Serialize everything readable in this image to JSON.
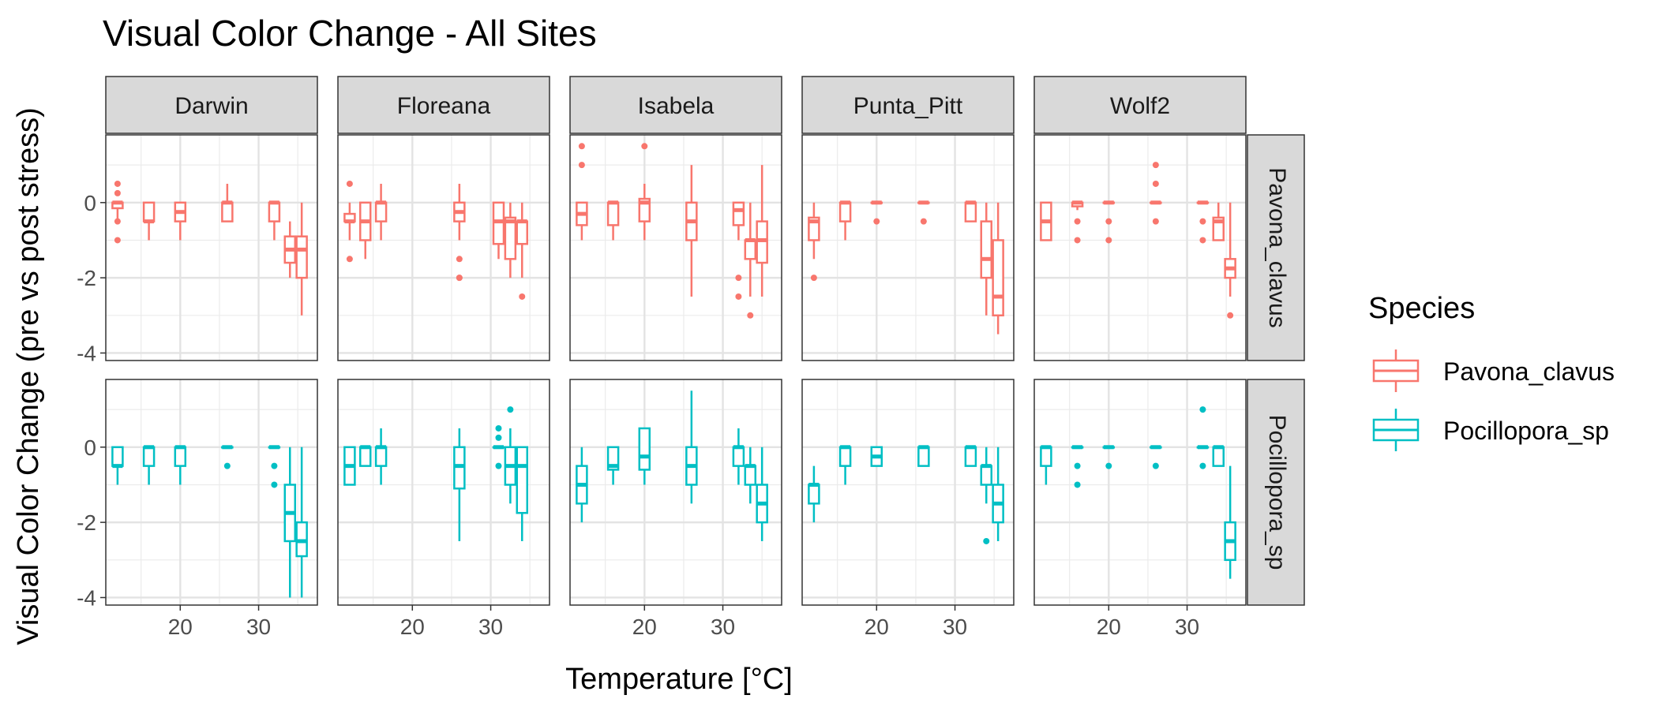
{
  "chart_data": {
    "type": "box",
    "title": "Visual Color Change - All Sites",
    "xlabel": "Temperature [°C]",
    "ylabel": "Visual Color Change (pre vs post stress)",
    "xlim": [
      10.5,
      37.5
    ],
    "ylim": [
      -4.2,
      1.8
    ],
    "x_ticks": [
      20,
      30
    ],
    "y_ticks": [
      0,
      -2,
      -4
    ],
    "grid": true,
    "legend": {
      "title": "Species",
      "position": "right",
      "entries": [
        {
          "label": "Pavona_clavus",
          "color": "#F8766D"
        },
        {
          "label": "Pocillopora_sp",
          "color": "#00BFC4"
        }
      ]
    },
    "sites": [
      "Darwin",
      "Floreana",
      "Isabela",
      "Punta_Pitt",
      "Wolf2"
    ],
    "species": [
      {
        "name": "Pavona_clavus",
        "color": "#F8766D"
      },
      {
        "name": "Pocillopora_sp",
        "color": "#00BFC4"
      }
    ],
    "boxes": [
      [
        [
          {
            "x": 12,
            "q1": -0.15,
            "med": 0,
            "q3": 0,
            "lo": -0.5,
            "hi": 0,
            "out": [
              0.5,
              0.25,
              -0.5,
              -1
            ]
          },
          {
            "x": 16,
            "q1": -0.5,
            "med": -0.5,
            "q3": 0,
            "lo": -1,
            "hi": 0
          },
          {
            "x": 20,
            "q1": -0.5,
            "med": -0.25,
            "q3": 0,
            "lo": -1,
            "hi": 0
          },
          {
            "x": 26,
            "q1": -0.5,
            "med": 0,
            "q3": 0,
            "lo": -0.5,
            "hi": 0.5
          },
          {
            "x": 32,
            "q1": -0.5,
            "med": 0,
            "q3": 0,
            "lo": -1,
            "hi": 0
          },
          {
            "x": 34,
            "q1": -1.6,
            "med": -1.25,
            "q3": -0.9,
            "lo": -2,
            "hi": -0.5
          },
          {
            "x": 35.5,
            "q1": -2,
            "med": -1.25,
            "q3": -0.9,
            "lo": -3,
            "hi": 0
          }
        ],
        [
          {
            "x": 12,
            "q1": -0.5,
            "med": -0.5,
            "q3": -0.3,
            "lo": -1,
            "hi": 0,
            "out": [
              0.5,
              -1.5
            ]
          },
          {
            "x": 14,
            "q1": -1,
            "med": -0.5,
            "q3": 0,
            "lo": -1.5,
            "hi": 0
          },
          {
            "x": 16,
            "q1": -0.5,
            "med": 0,
            "q3": 0,
            "lo": -1,
            "hi": 0.5
          },
          {
            "x": 26,
            "q1": -0.5,
            "med": -0.25,
            "q3": 0,
            "lo": -1,
            "hi": 0.5,
            "out": [
              -1.5,
              -2,
              -2
            ]
          },
          {
            "x": 31,
            "q1": -1.1,
            "med": -0.5,
            "q3": 0,
            "lo": -1.5,
            "hi": 0
          },
          {
            "x": 32.5,
            "q1": -1.5,
            "med": -0.5,
            "q3": -0.4,
            "lo": -2,
            "hi": 0
          },
          {
            "x": 34,
            "q1": -1.1,
            "med": -0.5,
            "q3": -0.5,
            "lo": -2,
            "hi": 0,
            "out": [
              -2.5
            ]
          }
        ],
        [
          {
            "x": 12,
            "q1": -0.6,
            "med": -0.3,
            "q3": 0,
            "lo": -1,
            "hi": 0,
            "out": [
              1.5,
              1
            ]
          },
          {
            "x": 16,
            "q1": -0.6,
            "med": 0,
            "q3": 0,
            "lo": -1,
            "hi": 0
          },
          {
            "x": 20,
            "q1": -0.5,
            "med": 0,
            "q3": 0.1,
            "lo": -1,
            "hi": 0.5,
            "out": [
              1.5
            ]
          },
          {
            "x": 26,
            "q1": -1,
            "med": -0.5,
            "q3": 0,
            "lo": -2.5,
            "hi": 1
          },
          {
            "x": 32,
            "q1": -0.6,
            "med": -0.2,
            "q3": 0,
            "lo": -1,
            "hi": 0,
            "out": [
              -2,
              -2.5
            ]
          },
          {
            "x": 33.5,
            "q1": -1.5,
            "med": -1,
            "q3": -1,
            "lo": -2.5,
            "hi": 0,
            "out": [
              -3
            ]
          },
          {
            "x": 35,
            "q1": -1.6,
            "med": -1,
            "q3": -0.5,
            "lo": -2.5,
            "hi": 1
          }
        ],
        [
          {
            "x": 12,
            "q1": -1,
            "med": -0.5,
            "q3": -0.4,
            "lo": -1.5,
            "hi": 0,
            "out": [
              -2
            ]
          },
          {
            "x": 16,
            "q1": -0.5,
            "med": 0,
            "q3": 0,
            "lo": -1,
            "hi": 0
          },
          {
            "x": 20,
            "q1": 0,
            "med": 0,
            "q3": 0,
            "lo": 0,
            "hi": 0,
            "out": [
              -0.5
            ]
          },
          {
            "x": 26,
            "q1": 0,
            "med": 0,
            "q3": 0,
            "lo": 0,
            "hi": 0,
            "out": [
              -0.5
            ]
          },
          {
            "x": 32,
            "q1": -0.5,
            "med": 0,
            "q3": 0,
            "lo": -0.5,
            "hi": 0
          },
          {
            "x": 34,
            "q1": -2,
            "med": -1.5,
            "q3": -0.5,
            "lo": -3,
            "hi": 0
          },
          {
            "x": 35.5,
            "q1": -3,
            "med": -2.5,
            "q3": -1,
            "lo": -3.5,
            "hi": 0
          }
        ],
        [
          {
            "x": 12,
            "q1": -1,
            "med": -0.5,
            "q3": 0,
            "lo": -1,
            "hi": 0
          },
          {
            "x": 16,
            "q1": -0.1,
            "med": 0,
            "q3": 0,
            "lo": -0.2,
            "hi": 0,
            "out": [
              -0.5,
              -1
            ]
          },
          {
            "x": 20,
            "q1": 0,
            "med": 0,
            "q3": 0,
            "lo": 0,
            "hi": 0,
            "out": [
              -0.5,
              -1
            ]
          },
          {
            "x": 26,
            "q1": 0,
            "med": 0,
            "q3": 0,
            "lo": 0,
            "hi": 0,
            "out": [
              1,
              0.5,
              -0.5
            ]
          },
          {
            "x": 32,
            "q1": 0,
            "med": 0,
            "q3": 0,
            "lo": 0,
            "hi": 0,
            "out": [
              -0.5,
              -1
            ]
          },
          {
            "x": 34,
            "q1": -1,
            "med": -0.5,
            "q3": -0.4,
            "lo": -1,
            "hi": 0
          },
          {
            "x": 35.5,
            "q1": -2,
            "med": -1.75,
            "q3": -1.5,
            "lo": -2.5,
            "hi": 0,
            "out": [
              -3
            ]
          }
        ]
      ],
      [
        [
          {
            "x": 12,
            "q1": -0.5,
            "med": -0.5,
            "q3": 0,
            "lo": -1,
            "hi": 0
          },
          {
            "x": 16,
            "q1": -0.5,
            "med": 0,
            "q3": 0,
            "lo": -1,
            "hi": 0
          },
          {
            "x": 20,
            "q1": -0.5,
            "med": 0,
            "q3": 0,
            "lo": -1,
            "hi": 0
          },
          {
            "x": 26,
            "q1": 0,
            "med": 0,
            "q3": 0,
            "lo": 0,
            "hi": 0,
            "out": [
              -0.5
            ]
          },
          {
            "x": 32,
            "q1": 0,
            "med": 0,
            "q3": 0,
            "lo": 0,
            "hi": 0,
            "out": [
              -0.5,
              -1
            ]
          },
          {
            "x": 34,
            "q1": -2.5,
            "med": -1.75,
            "q3": -1,
            "lo": -4,
            "hi": 0
          },
          {
            "x": 35.5,
            "q1": -2.9,
            "med": -2.5,
            "q3": -2,
            "lo": -4,
            "hi": 0
          }
        ],
        [
          {
            "x": 12,
            "q1": -1,
            "med": -0.5,
            "q3": 0,
            "lo": -1,
            "hi": 0
          },
          {
            "x": 14,
            "q1": -0.5,
            "med": 0,
            "q3": 0,
            "lo": -0.5,
            "hi": 0
          },
          {
            "x": 16,
            "q1": -0.5,
            "med": 0,
            "q3": 0,
            "lo": -1,
            "hi": 0.5
          },
          {
            "x": 26,
            "q1": -1.1,
            "med": -0.5,
            "q3": 0,
            "lo": -2.5,
            "hi": 0.5
          },
          {
            "x": 31,
            "q1": 0,
            "med": 0,
            "q3": 0,
            "lo": 0,
            "hi": 0,
            "out": [
              0.5,
              0.25,
              -0.5
            ]
          },
          {
            "x": 32.5,
            "q1": -1,
            "med": -0.5,
            "q3": 0,
            "lo": -1.5,
            "hi": 0.5,
            "out": [
              1
            ]
          },
          {
            "x": 34,
            "q1": -1.75,
            "med": -0.5,
            "q3": 0,
            "lo": -2.5,
            "hi": 0
          }
        ],
        [
          {
            "x": 12,
            "q1": -1.5,
            "med": -1,
            "q3": -0.5,
            "lo": -2,
            "hi": 0
          },
          {
            "x": 16,
            "q1": -0.6,
            "med": -0.5,
            "q3": 0,
            "lo": -1,
            "hi": 0
          },
          {
            "x": 20,
            "q1": -0.6,
            "med": -0.25,
            "q3": 0.5,
            "lo": -1,
            "hi": 0.5
          },
          {
            "x": 26,
            "q1": -1,
            "med": -0.5,
            "q3": 0,
            "lo": -1.5,
            "hi": 1.5
          },
          {
            "x": 32,
            "q1": -0.5,
            "med": 0,
            "q3": 0,
            "lo": -1,
            "hi": 0.5
          },
          {
            "x": 33.5,
            "q1": -1,
            "med": -0.5,
            "q3": -0.5,
            "lo": -1.5,
            "hi": 0
          },
          {
            "x": 35,
            "q1": -2,
            "med": -1.5,
            "q3": -1,
            "lo": -2.5,
            "hi": 0
          }
        ],
        [
          {
            "x": 12,
            "q1": -1.5,
            "med": -1,
            "q3": -1,
            "lo": -2,
            "hi": -0.5
          },
          {
            "x": 16,
            "q1": -0.5,
            "med": 0,
            "q3": 0,
            "lo": -1,
            "hi": 0
          },
          {
            "x": 20,
            "q1": -0.5,
            "med": -0.25,
            "q3": 0,
            "lo": -0.5,
            "hi": 0
          },
          {
            "x": 26,
            "q1": -0.5,
            "med": 0,
            "q3": 0,
            "lo": -0.5,
            "hi": 0
          },
          {
            "x": 32,
            "q1": -0.5,
            "med": 0,
            "q3": 0,
            "lo": -0.5,
            "hi": 0
          },
          {
            "x": 34,
            "q1": -1,
            "med": -0.5,
            "q3": -0.5,
            "lo": -1.5,
            "hi": 0,
            "out": [
              -2.5
            ]
          },
          {
            "x": 35.5,
            "q1": -2,
            "med": -1.5,
            "q3": -1,
            "lo": -2.5,
            "hi": 0
          }
        ],
        [
          {
            "x": 12,
            "q1": -0.5,
            "med": 0,
            "q3": 0,
            "lo": -1,
            "hi": 0
          },
          {
            "x": 16,
            "q1": 0,
            "med": 0,
            "q3": 0,
            "lo": 0,
            "hi": 0,
            "out": [
              -0.5,
              -1
            ]
          },
          {
            "x": 20,
            "q1": 0,
            "med": 0,
            "q3": 0,
            "lo": 0,
            "hi": 0,
            "out": [
              -0.5
            ]
          },
          {
            "x": 26,
            "q1": 0,
            "med": 0,
            "q3": 0,
            "lo": 0,
            "hi": 0,
            "out": [
              -0.5
            ]
          },
          {
            "x": 32,
            "q1": 0,
            "med": 0,
            "q3": 0,
            "lo": 0,
            "hi": 0,
            "out": [
              1,
              -0.5
            ]
          },
          {
            "x": 34,
            "q1": -0.5,
            "med": 0,
            "q3": 0,
            "lo": -0.5,
            "hi": 0
          },
          {
            "x": 35.5,
            "q1": -3,
            "med": -2.5,
            "q3": -2,
            "lo": -3.5,
            "hi": -0.5
          }
        ]
      ]
    ]
  }
}
